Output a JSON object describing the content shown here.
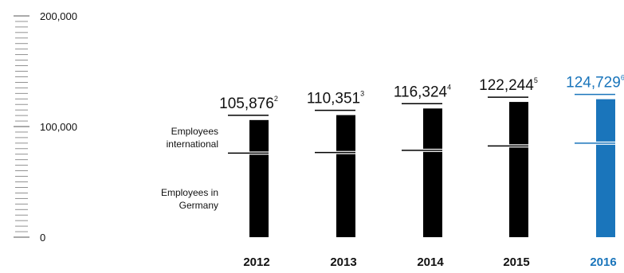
{
  "chart_data": {
    "type": "bar",
    "stacked": true,
    "categories": [
      "2012",
      "2013",
      "2014",
      "2015",
      "2016"
    ],
    "series": [
      {
        "name": "Employees in Germany",
        "values": [
          76000,
          76500,
          78500,
          82500,
          85000
        ]
      },
      {
        "name": "Employees international",
        "values": [
          29876,
          33851,
          37824,
          39744,
          39729
        ]
      }
    ],
    "totals": [
      {
        "value": "105,876",
        "footnote": "2"
      },
      {
        "value": "110,351",
        "footnote": "3"
      },
      {
        "value": "116,324",
        "footnote": "4"
      },
      {
        "value": "122,244",
        "footnote": "5"
      },
      {
        "value": "124,729",
        "footnote": "6"
      }
    ],
    "y_ticks": [
      "200,000",
      "100,000",
      "0"
    ],
    "ylim": [
      0,
      200000
    ],
    "grid": false,
    "segment_labels": {
      "international": [
        "Employees",
        "international"
      ],
      "germany": [
        "Employees in",
        "Germany"
      ]
    },
    "colors": {
      "bar": "#000000",
      "highlight": "#1a75bb",
      "text": "#111111"
    },
    "highlight_category": "2016"
  }
}
